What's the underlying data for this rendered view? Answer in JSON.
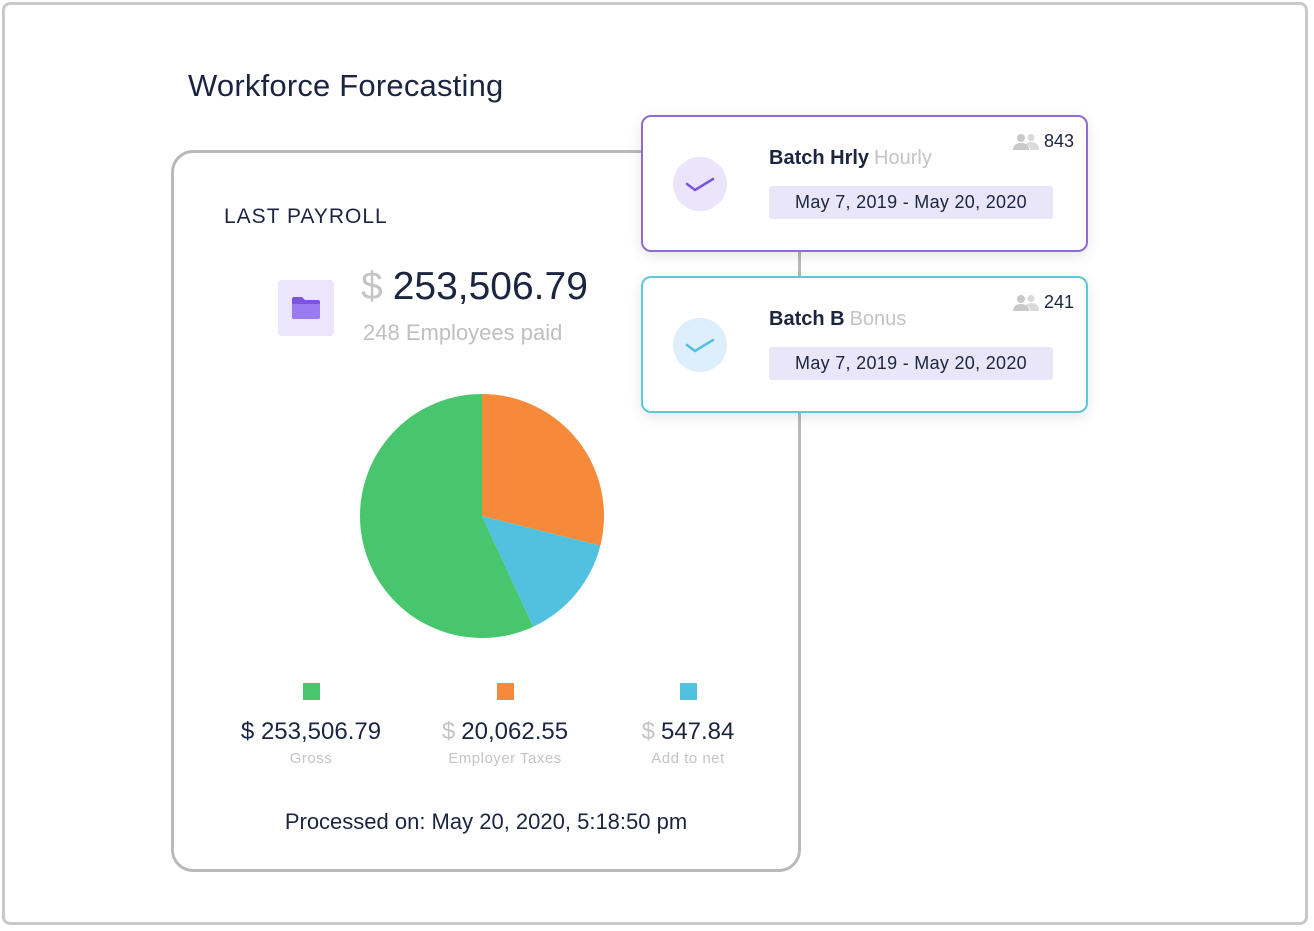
{
  "page": {
    "title": "Workforce Forecasting"
  },
  "payroll_card": {
    "heading": "LAST PAYROLL",
    "folder_icon": "folder-icon",
    "total": {
      "currency": "$",
      "amount": "253,506.79"
    },
    "employees_paid": "248 Employees paid",
    "processed_on": "Processed on: May 20, 2020, 5:18:50 pm",
    "legend": [
      {
        "currency": "$",
        "amount": "253,506.79",
        "label": "Gross",
        "color": "#48c66e"
      },
      {
        "currency": "$",
        "amount": "20,062.55",
        "label": "Employer Taxes",
        "color": "#f68a3a"
      },
      {
        "currency": "$",
        "amount": "547.84",
        "label": "Add to net",
        "color": "#52c1df"
      }
    ]
  },
  "chart_data": {
    "type": "pie",
    "categories": [
      "Gross",
      "Employer Taxes",
      "Add to net"
    ],
    "values": [
      0.569,
      0.289,
      0.142
    ],
    "colors": [
      "#48c66e",
      "#f68a3a",
      "#52c1df"
    ],
    "start_angle_deg": 0,
    "direction": "clockwise"
  },
  "batches": [
    {
      "name": "Batch Hrly",
      "type": "Hourly",
      "date_range": "May 7, 2019 - May 20, 2020",
      "count": "843",
      "accent": "#8d6cd4",
      "icons": {
        "check": "check-icon",
        "people": "people-icon"
      }
    },
    {
      "name": "Batch B",
      "type": "Bonus",
      "date_range": "May 7, 2019 - May 20, 2020",
      "count": "241",
      "accent": "#5dc8d6",
      "icons": {
        "check": "check-icon",
        "people": "people-icon"
      }
    }
  ]
}
